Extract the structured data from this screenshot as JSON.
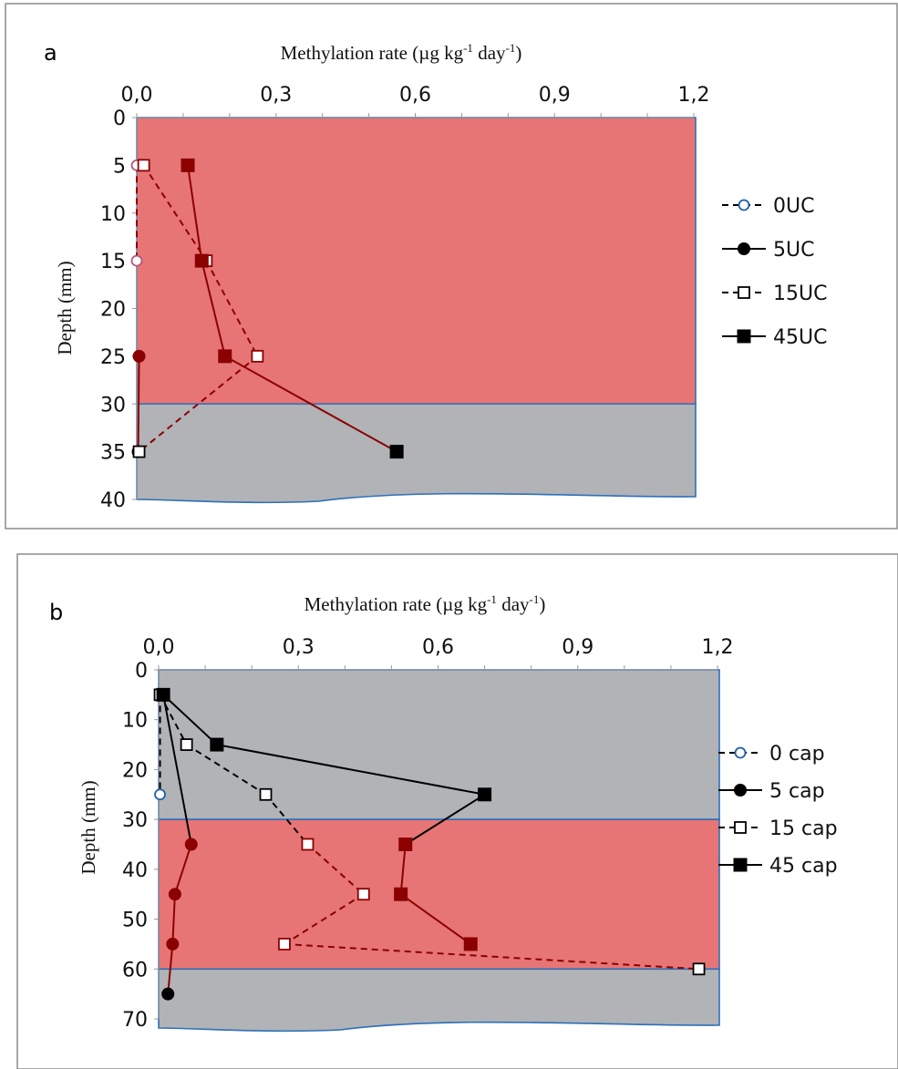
{
  "colors": {
    "red_zone": "#e87575",
    "grey_zone": "#b1b3b6",
    "zone_border": "#2e6fba",
    "line_dark": "#000000",
    "line_red": "#8b0000",
    "open_circle": "#1f5fa8",
    "panel_border": "#8c8c8c"
  },
  "chart_data": [
    {
      "type": "line",
      "panel_label": "a",
      "xlabel": "Methylation rate (µg kg-1 day-1)",
      "xlabel_parts": {
        "main": "Methylation rate (µg kg",
        "exp1": "-1",
        "mid": " day",
        "exp2": "-1",
        "end": ")"
      },
      "ylabel": "Depth (mm)",
      "xlim": [
        0,
        1.2
      ],
      "ylim": [
        0,
        40
      ],
      "x_ticks": [
        0,
        0.3,
        0.6,
        0.9,
        1.2
      ],
      "x_tick_labels": [
        "0,0",
        "0,3",
        "0,6",
        "0,9",
        "1,2"
      ],
      "y_ticks": [
        0,
        5,
        10,
        15,
        20,
        25,
        30,
        35,
        40
      ],
      "y_tick_labels": [
        "0",
        "5",
        "10",
        "15",
        "20",
        "25",
        "30",
        "35",
        "40"
      ],
      "y_reversed": true,
      "grid": false,
      "legend_position": "right",
      "zones": [
        {
          "from": 0,
          "to": 30,
          "color": "red"
        },
        {
          "from": 30,
          "to": 40,
          "color": "grey"
        }
      ],
      "series": [
        {
          "name": "0UC",
          "dash": true,
          "marker": "open-circle",
          "x": [
            0,
            0
          ],
          "y": [
            5,
            15
          ]
        },
        {
          "name": "5UC",
          "dash": false,
          "marker": "filled-circle",
          "x": [
            0.005,
            0.003
          ],
          "y": [
            25,
            35
          ]
        },
        {
          "name": "15UC",
          "dash": true,
          "marker": "open-square",
          "x": [
            0.015,
            0.15,
            0.26,
            0.005
          ],
          "y": [
            5,
            15,
            25,
            35
          ]
        },
        {
          "name": "45UC",
          "dash": false,
          "marker": "filled-square",
          "x": [
            0.11,
            0.14,
            0.19,
            0.56
          ],
          "y": [
            5,
            15,
            25,
            35
          ]
        }
      ]
    },
    {
      "type": "line",
      "panel_label": "b",
      "xlabel": "Methylation rate (µg kg-1 day-1)",
      "xlabel_parts": {
        "main": "Methylation rate (µg kg",
        "exp1": "-1",
        "mid": " day",
        "exp2": "-1",
        "end": ")"
      },
      "ylabel": "Depth (mm)",
      "xlim": [
        0,
        1.2
      ],
      "ylim": [
        0,
        70
      ],
      "x_ticks": [
        0,
        0.3,
        0.6,
        0.9,
        1.2
      ],
      "x_tick_labels": [
        "0,0",
        "0,3",
        "0,6",
        "0,9",
        "1,2"
      ],
      "y_ticks": [
        0,
        10,
        20,
        30,
        40,
        50,
        60,
        70
      ],
      "y_tick_labels": [
        "0",
        "10",
        "20",
        "30",
        "40",
        "50",
        "60",
        "70"
      ],
      "y_reversed": true,
      "grid": false,
      "legend_position": "right",
      "zones": [
        {
          "from": 0,
          "to": 30,
          "color": "grey"
        },
        {
          "from": 30,
          "to": 60,
          "color": "red"
        },
        {
          "from": 60,
          "to": 72,
          "color": "grey"
        }
      ],
      "series": [
        {
          "name": "0 cap",
          "dash": true,
          "marker": "open-circle",
          "x": [
            0.003,
            0.003
          ],
          "y": [
            5,
            25
          ]
        },
        {
          "name": "5 cap",
          "dash": false,
          "marker": "filled-circle",
          "x": [
            0.01,
            0.07,
            0.035,
            0.03,
            0.02
          ],
          "y": [
            5,
            35,
            45,
            55,
            65
          ]
        },
        {
          "name": "15 cap",
          "dash": true,
          "marker": "open-square",
          "x": [
            0.003,
            0.06,
            0.23,
            0.32,
            0.44,
            0.27,
            1.16
          ],
          "y": [
            5,
            15,
            25,
            35,
            45,
            55,
            60
          ]
        },
        {
          "name": "45 cap",
          "dash": false,
          "marker": "filled-square",
          "x": [
            0.01,
            0.125,
            0.7,
            0.53,
            0.52,
            0.67
          ],
          "y": [
            5,
            15,
            25,
            35,
            45,
            55
          ]
        }
      ]
    }
  ]
}
